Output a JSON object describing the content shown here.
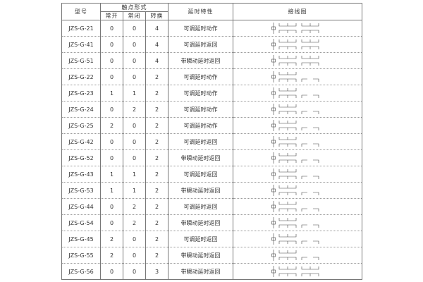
{
  "header": {
    "model": "型号",
    "contact_form": "触点形式",
    "normally_open": "常开",
    "normally_closed": "常闭",
    "changeover": "转换",
    "delay_characteristic": "延时特性",
    "wiring_diagram": "接线图"
  },
  "rows": [
    {
      "model": "JZS-G-21",
      "no": "0",
      "nc": "0",
      "co": "4",
      "delay": "可调延时动作"
    },
    {
      "model": "JZS-G-41",
      "no": "0",
      "nc": "0",
      "co": "4",
      "delay": "可调延时返回"
    },
    {
      "model": "JZS-G-51",
      "no": "0",
      "nc": "0",
      "co": "4",
      "delay": "带瞬动延时返回"
    },
    {
      "model": "JZS-G-22",
      "no": "0",
      "nc": "0",
      "co": "2",
      "delay": "可调延时动作"
    },
    {
      "model": "JZS-G-23",
      "no": "1",
      "nc": "1",
      "co": "2",
      "delay": "可调延时动作"
    },
    {
      "model": "JZS-G-24",
      "no": "0",
      "nc": "2",
      "co": "2",
      "delay": "可调延时动作"
    },
    {
      "model": "JZS-G-25",
      "no": "2",
      "nc": "0",
      "co": "2",
      "delay": "可调延时动作"
    },
    {
      "model": "JZS-G-42",
      "no": "0",
      "nc": "0",
      "co": "2",
      "delay": "可调延时返回"
    },
    {
      "model": "JZS-G-52",
      "no": "0",
      "nc": "0",
      "co": "2",
      "delay": "带瞬动延时返回"
    },
    {
      "model": "JZS-G-43",
      "no": "1",
      "nc": "1",
      "co": "2",
      "delay": "可调延时返回"
    },
    {
      "model": "JZS-G-53",
      "no": "1",
      "nc": "1",
      "co": "2",
      "delay": "带瞬动延时返回"
    },
    {
      "model": "JZS-G-44",
      "no": "0",
      "nc": "2",
      "co": "2",
      "delay": "可调延时返回"
    },
    {
      "model": "JZS-G-54",
      "no": "0",
      "nc": "2",
      "co": "2",
      "delay": "带瞬动延时返回"
    },
    {
      "model": "JZS-G-45",
      "no": "2",
      "nc": "0",
      "co": "2",
      "delay": "可调延时返回"
    },
    {
      "model": "JZS-G-55",
      "no": "2",
      "nc": "0",
      "co": "2",
      "delay": "带瞬动延时返回"
    },
    {
      "model": "JZS-G-56",
      "no": "0",
      "nc": "0",
      "co": "3",
      "delay": "带瞬动延时返回"
    }
  ]
}
